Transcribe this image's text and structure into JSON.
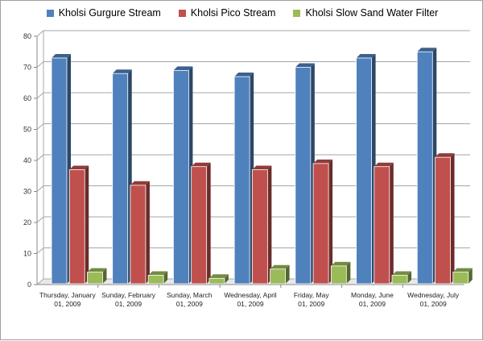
{
  "chart_data": {
    "type": "bar",
    "title": "",
    "xlabel": "",
    "ylabel": "",
    "ylim": [
      0,
      80
    ],
    "yticks": [
      0,
      10,
      20,
      30,
      40,
      50,
      60,
      70,
      80
    ],
    "grid": true,
    "legend_position": "top",
    "style": "3d-clustered-column",
    "categories": [
      [
        "Thursday, January",
        "01, 2009"
      ],
      [
        "Sunday, February",
        "01, 2009"
      ],
      [
        "Sunday, March",
        "01, 2009"
      ],
      [
        "Wednesday, April",
        "01, 2009"
      ],
      [
        "Friday, May",
        "01, 2009"
      ],
      [
        "Monday, June",
        "01, 2009"
      ],
      [
        "Wednesday, July",
        "01, 2009"
      ]
    ],
    "series": [
      {
        "name": "Kholsi Gurgure Stream",
        "color": "#4f81bd",
        "values": [
          73,
          68,
          69,
          67,
          70,
          73,
          75
        ]
      },
      {
        "name": "Kholsi Pico Stream",
        "color": "#c0504d",
        "values": [
          37,
          32,
          38,
          37,
          39,
          38,
          41
        ]
      },
      {
        "name": "Kholsi Slow Sand Water Filter",
        "color": "#9bbb59",
        "values": [
          4,
          3,
          2,
          5,
          6,
          3,
          4
        ]
      }
    ]
  }
}
